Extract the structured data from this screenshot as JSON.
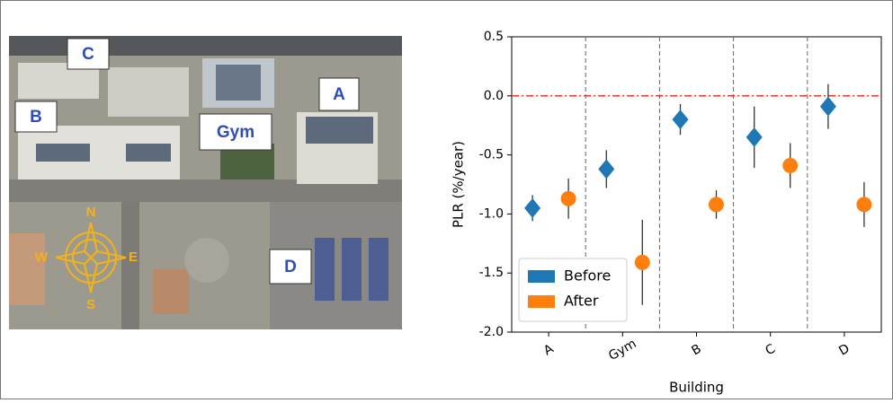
{
  "map_labels": [
    "C",
    "B",
    "Gym",
    "A",
    "D"
  ],
  "compass": [
    "N",
    "S",
    "E",
    "W"
  ],
  "chart_data": {
    "type": "errorbar",
    "xlabel": "Building",
    "ylabel": "PLR (%/year)",
    "categories": [
      "A",
      "Gym",
      "B",
      "C",
      "D"
    ],
    "series": [
      {
        "name": "Before",
        "color": "#1f77b4",
        "marker": "diamond",
        "values": [
          -0.95,
          -0.62,
          -0.2,
          -0.35,
          -0.09
        ],
        "errors": [
          0.11,
          0.16,
          0.13,
          0.26,
          0.19
        ]
      },
      {
        "name": "After",
        "color": "#ff7f0e",
        "marker": "circle",
        "values": [
          -0.87,
          -1.41,
          -0.92,
          -0.59,
          -0.92
        ],
        "errors": [
          0.17,
          0.36,
          0.12,
          0.19,
          0.19
        ]
      }
    ],
    "ylim": [
      -2.0,
      0.5
    ],
    "yticks": [
      {
        "value": -2.0,
        "label": "-2.0"
      },
      -1.5,
      {
        "value": -1.0,
        "label": "-1.0"
      },
      -0.5,
      {
        "value": 0.0,
        "label": "0.0"
      },
      0.5
    ],
    "reference_line": 0,
    "reference_color": "#e8392a",
    "legend": "lower left"
  }
}
